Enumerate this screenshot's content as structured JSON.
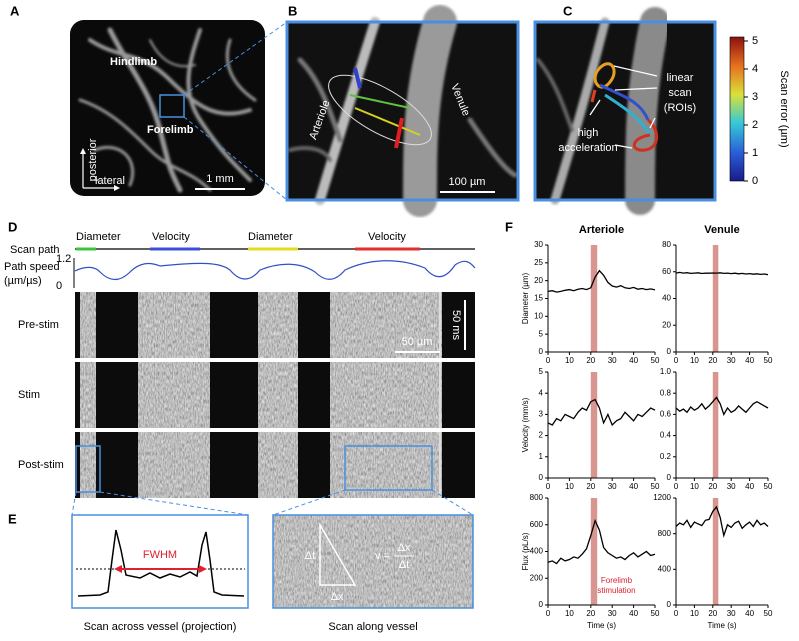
{
  "panels": {
    "A": {
      "label": "A",
      "hindlimb": "Hindlimb",
      "forelimb": "Forelimb",
      "posterior": "posterior",
      "lateral": "lateral",
      "scale_bar": "1 mm"
    },
    "B": {
      "label": "B",
      "arteriole": "Arteriole",
      "venule": "Venule",
      "scale_bar": "100 µm"
    },
    "C": {
      "label": "C",
      "linear_scan": [
        "linear",
        "scan",
        "(ROIs)"
      ],
      "high_acceleration": [
        "high",
        "acceleration"
      ],
      "colorbar": {
        "label": "Scan error (µm)",
        "ticks": [
          0,
          1,
          2,
          3,
          4,
          5
        ]
      }
    },
    "D": {
      "label": "D",
      "scan_path": "Scan path",
      "segments": [
        "Diameter",
        "Velocity",
        "Diameter",
        "Velocity"
      ],
      "path_speed": [
        "Path speed",
        "(µm/µs)"
      ],
      "path_speed_ticks": [
        1.2,
        0
      ],
      "rows": [
        "Pre-stim",
        "Stim",
        "Post-stim"
      ],
      "scale_x": "50 µm",
      "scale_t": "50 ms"
    },
    "E": {
      "label": "E",
      "fwhm": "FWHM",
      "caption_left": "Scan across vessel (projection)",
      "caption_right": "Scan along vessel",
      "dt": "Δt",
      "dx": "Δx",
      "formula": {
        "lhs": "v =",
        "num": "Δx",
        "den": "Δt"
      }
    },
    "F": {
      "label": "F"
    }
  },
  "chart_data": [
    {
      "type": "line",
      "title": "Arteriole",
      "ylabel": "Diameter (µm)",
      "x": [
        0,
        2,
        4,
        6,
        8,
        10,
        12,
        14,
        16,
        18,
        20,
        22,
        24,
        26,
        28,
        30,
        32,
        34,
        36,
        38,
        40,
        42,
        44,
        46,
        48,
        50
      ],
      "series": [
        {
          "color": "#000000",
          "values": [
            17,
            17.2,
            16.8,
            17,
            17.3,
            17.5,
            17.2,
            17.6,
            17.8,
            17.5,
            18,
            21,
            22.8,
            21.5,
            19.5,
            18.5,
            18.2,
            18.6,
            18,
            17.8,
            18.1,
            17.6,
            17.8,
            17.5,
            17.7,
            17.4
          ]
        }
      ],
      "xlim": [
        0,
        50
      ],
      "xticks": [
        0,
        10,
        20,
        30,
        40,
        50
      ],
      "ylim": [
        0,
        30
      ],
      "yticks": [
        0,
        5,
        10,
        15,
        20,
        25,
        30
      ],
      "highlight": {
        "x": [
          20,
          23
        ],
        "color": "#d9958f"
      }
    },
    {
      "type": "line",
      "title": "Venule",
      "x": [
        0,
        2,
        4,
        6,
        8,
        10,
        12,
        14,
        16,
        18,
        20,
        22,
        24,
        26,
        28,
        30,
        32,
        34,
        36,
        38,
        40,
        42,
        44,
        46,
        48,
        50
      ],
      "series": [
        {
          "color": "#000000",
          "values": [
            59,
            59.5,
            59,
            59.3,
            58.8,
            59,
            59.2,
            58.7,
            59,
            58.9,
            59.1,
            59,
            59.2,
            58.8,
            59,
            58.6,
            58.9,
            58.5,
            58.8,
            58.3,
            58.6,
            58.2,
            58.5,
            58,
            58.3,
            57.8
          ]
        }
      ],
      "xlim": [
        0,
        50
      ],
      "xticks": [
        0,
        10,
        20,
        30,
        40,
        50
      ],
      "ylim": [
        0,
        80
      ],
      "yticks": [
        0,
        20,
        40,
        60,
        80
      ],
      "highlight": {
        "x": [
          20,
          23
        ],
        "color": "#d9958f"
      }
    },
    {
      "type": "line",
      "ylabel": "Velocity (mm/s)",
      "x": [
        0,
        2,
        4,
        6,
        8,
        10,
        12,
        14,
        16,
        18,
        20,
        22,
        24,
        26,
        28,
        30,
        32,
        34,
        36,
        38,
        40,
        42,
        44,
        46,
        48,
        50
      ],
      "series": [
        {
          "color": "#000000",
          "values": [
            2.6,
            2.5,
            2.8,
            2.7,
            3.0,
            2.9,
            2.8,
            3.1,
            3.3,
            3.2,
            3.6,
            3.7,
            3.3,
            2.6,
            3.0,
            2.5,
            2.7,
            2.8,
            3.1,
            2.9,
            2.7,
            3.0,
            2.9,
            3.1,
            3.3,
            3.2
          ]
        }
      ],
      "xlim": [
        0,
        50
      ],
      "xticks": [
        0,
        10,
        20,
        30,
        40,
        50
      ],
      "ylim": [
        0,
        5
      ],
      "yticks": [
        0,
        1,
        2,
        3,
        4,
        5
      ],
      "highlight": {
        "x": [
          20,
          23
        ],
        "color": "#d9958f"
      }
    },
    {
      "type": "line",
      "x": [
        0,
        2,
        4,
        6,
        8,
        10,
        12,
        14,
        16,
        18,
        20,
        22,
        24,
        26,
        28,
        30,
        32,
        34,
        36,
        38,
        40,
        42,
        44,
        46,
        48,
        50
      ],
      "series": [
        {
          "color": "#000000",
          "values": [
            0.66,
            0.63,
            0.65,
            0.62,
            0.67,
            0.64,
            0.66,
            0.7,
            0.65,
            0.68,
            0.72,
            0.76,
            0.7,
            0.6,
            0.66,
            0.62,
            0.64,
            0.68,
            0.65,
            0.62,
            0.66,
            0.7,
            0.72,
            0.7,
            0.68,
            0.66
          ]
        }
      ],
      "xlim": [
        0,
        50
      ],
      "xticks": [
        0,
        10,
        20,
        30,
        40,
        50
      ],
      "ylim": [
        0,
        1
      ],
      "yticks": [
        0,
        0.2,
        0.4,
        0.6,
        0.8,
        {
          "value": 1,
          "label": "1.0"
        }
      ],
      "highlight": {
        "x": [
          20,
          23
        ],
        "color": "#d9958f"
      }
    },
    {
      "type": "line",
      "ylabel": "Flux (pL/s)",
      "xlabel": "Time (s)",
      "annotation": [
        "Forelimb",
        "stimulation"
      ],
      "x": [
        0,
        2,
        4,
        6,
        8,
        10,
        12,
        14,
        16,
        18,
        20,
        22,
        24,
        26,
        28,
        30,
        32,
        34,
        36,
        38,
        40,
        42,
        44,
        46,
        48,
        50
      ],
      "series": [
        {
          "color": "#000000",
          "values": [
            320,
            330,
            310,
            350,
            330,
            340,
            360,
            350,
            380,
            420,
            520,
            630,
            560,
            430,
            390,
            370,
            350,
            360,
            340,
            370,
            390,
            360,
            380,
            400,
            370,
            380
          ]
        }
      ],
      "xlim": [
        0,
        50
      ],
      "xticks": [
        0,
        10,
        20,
        30,
        40,
        50
      ],
      "ylim": [
        0,
        800
      ],
      "yticks": [
        0,
        200,
        400,
        600,
        800
      ],
      "highlight": {
        "x": [
          20,
          23
        ],
        "color": "#d9958f"
      }
    },
    {
      "type": "line",
      "xlabel": "Time (s)",
      "x": [
        0,
        2,
        4,
        6,
        8,
        10,
        12,
        14,
        16,
        18,
        20,
        22,
        24,
        26,
        28,
        30,
        32,
        34,
        36,
        38,
        40,
        42,
        44,
        46,
        48,
        50
      ],
      "series": [
        {
          "color": "#000000",
          "values": [
            880,
            920,
            900,
            950,
            870,
            930,
            910,
            890,
            950,
            960,
            1050,
            1100,
            980,
            780,
            900,
            870,
            920,
            940,
            860,
            900,
            930,
            880,
            950,
            900,
            920,
            880
          ]
        }
      ],
      "xlim": [
        0,
        50
      ],
      "xticks": [
        0,
        10,
        20,
        30,
        40,
        50
      ],
      "ylim": [
        0,
        1200
      ],
      "yticks": [
        0,
        400,
        800,
        1200
      ],
      "highlight": {
        "x": [
          20,
          23
        ],
        "color": "#d9958f"
      }
    }
  ]
}
